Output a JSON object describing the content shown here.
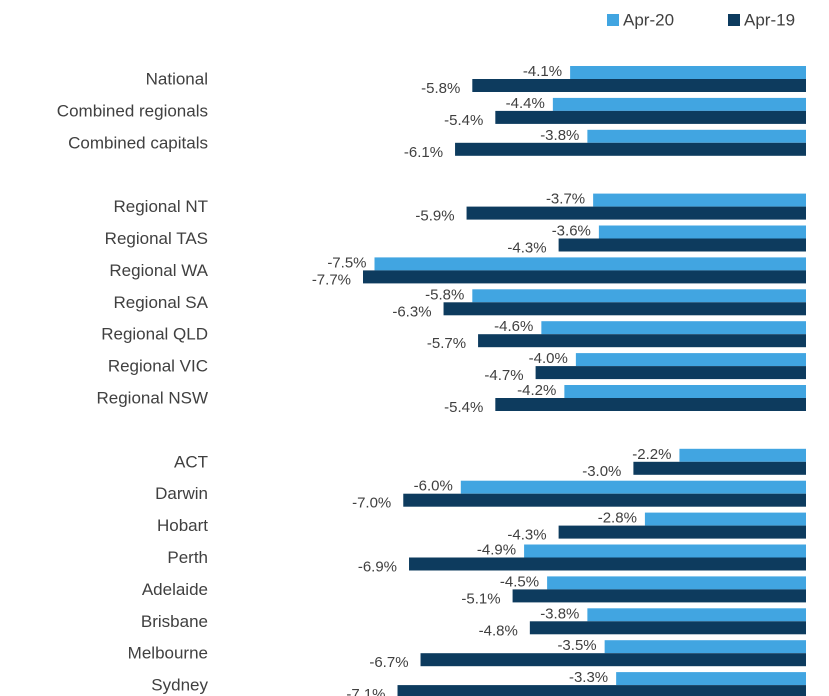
{
  "chart_data": {
    "type": "hbar",
    "categories": [
      "National",
      "Combined regionals",
      "Combined capitals",
      null,
      "Regional NT",
      "Regional TAS",
      "Regional WA",
      "Regional SA",
      "Regional QLD",
      "Regional VIC",
      "Regional NSW",
      null,
      "ACT",
      "Darwin",
      "Hobart",
      "Perth",
      "Adelaide",
      "Brisbane",
      "Melbourne",
      "Sydney"
    ],
    "series": [
      {
        "name": "Apr-20",
        "color": "#41a5e1",
        "values": [
          -4.1,
          -4.4,
          -3.8,
          null,
          -3.7,
          -3.6,
          -7.5,
          -5.8,
          -4.6,
          -4.0,
          -4.2,
          null,
          -2.2,
          -6.0,
          -2.8,
          -4.9,
          -4.5,
          -3.8,
          -3.5,
          -3.3
        ],
        "value_labels": [
          "-4.1%",
          "-4.4%",
          "-3.8%",
          null,
          "-3.7%",
          "-3.6%",
          "-7.5%",
          "-5.8%",
          "-4.6%",
          "-4.0%",
          "-4.2%",
          null,
          "-2.2%",
          "-6.0%",
          "-2.8%",
          "-4.9%",
          "-4.5%",
          "-3.8%",
          "-3.5%",
          "-3.3%"
        ]
      },
      {
        "name": "Apr-19",
        "color": "#0d3b5e",
        "values": [
          -5.8,
          -5.4,
          -6.1,
          null,
          -5.9,
          -4.3,
          -7.7,
          -6.3,
          -5.7,
          -4.7,
          -5.4,
          null,
          -3.0,
          -7.0,
          -4.3,
          -6.9,
          -5.1,
          -4.8,
          -6.7,
          -7.1
        ],
        "value_labels": [
          "-5.8%",
          "-5.4%",
          "-6.1%",
          null,
          "-5.9%",
          "-4.3%",
          "-7.7%",
          "-6.3%",
          "-5.7%",
          "-4.7%",
          "-5.4%",
          null,
          "-3.0%",
          "-7.0%",
          "-4.3%",
          "-6.9%",
          "-5.1%",
          "-4.8%",
          "-6.7%",
          "-7.1%"
        ]
      }
    ],
    "legend": "top-right"
  }
}
